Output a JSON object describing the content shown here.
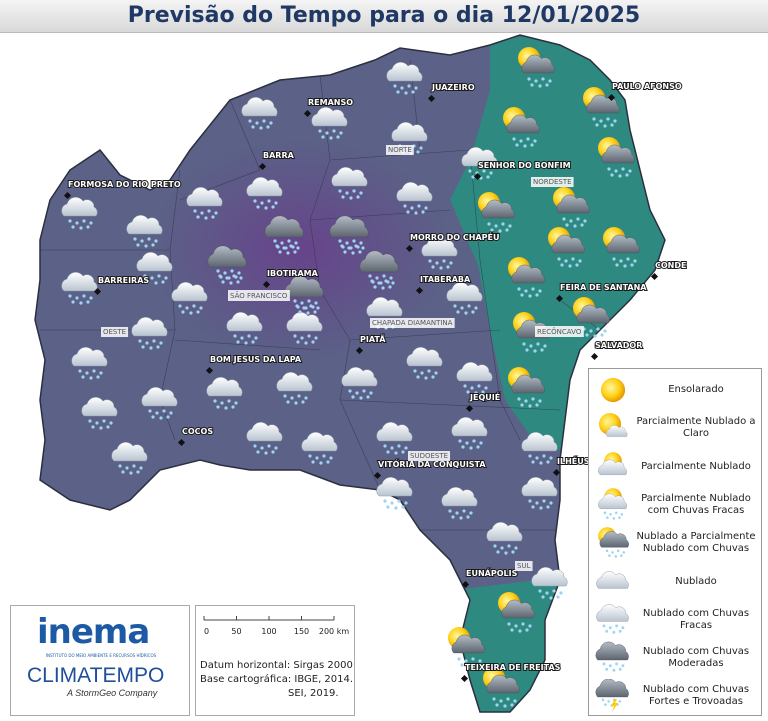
{
  "header": {
    "title": "Previsão do Tempo para o dia 12/01/2025"
  },
  "cities": [
    "FORMOSA DO RIO PRETO",
    "BARREIRAS",
    "REMANSO",
    "BARRA",
    "JUAZEIRO",
    "PAULO AFONSO",
    "SENHOR DO BONFIM",
    "MORRO DO CHAPÉU",
    "IBOTIRAMA",
    "CONDE",
    "FEIRA DE SANTANA",
    "ITABERABA",
    "SALVADOR",
    "BOM JESUS DA LAPA",
    "PIATÃ",
    "JEQUIÉ",
    "COCOS",
    "ILHÉUS",
    "VITÓRIA DA CONQUISTA",
    "EUNÁPOLIS",
    "TEIXEIRA DE FREITAS"
  ],
  "regions": [
    "NORTE",
    "NORDESTE",
    "SÃO FRANCISCO",
    "OESTE",
    "CHAPADA DIAMANTINA",
    "RECÔNCAVO",
    "SUDOESTE",
    "SUL"
  ],
  "legend": [
    "Ensolarado",
    "Parcialmente Nublado a Claro",
    "Parcialmente Nublado",
    "Parcialmente Nublado com Chuvas Fracas",
    "Nublado a Parcialmente Nublado com Chuvas",
    "Nublado",
    "Nublado com Chuvas Fracas",
    "Nublado com Chuvas Moderadas",
    "Nublado com Chuvas Fortes e Trovoadas"
  ],
  "scale": {
    "ticks": [
      "0",
      "50",
      "100",
      "150",
      "200 km"
    ],
    "datum": [
      "Datum horizontal: Sirgas 2000",
      "Base cartográfica: IBGE, 2014.",
      "SEI, 2019."
    ]
  },
  "logos": {
    "inema": "inema",
    "inema_sub": "INSTITUTO DO MEIO AMBIENTE E RECURSOS HÍDRICOS",
    "climatempo": "CLIMATEMPO",
    "climatempo_sub": "A StormGeo Company"
  }
}
